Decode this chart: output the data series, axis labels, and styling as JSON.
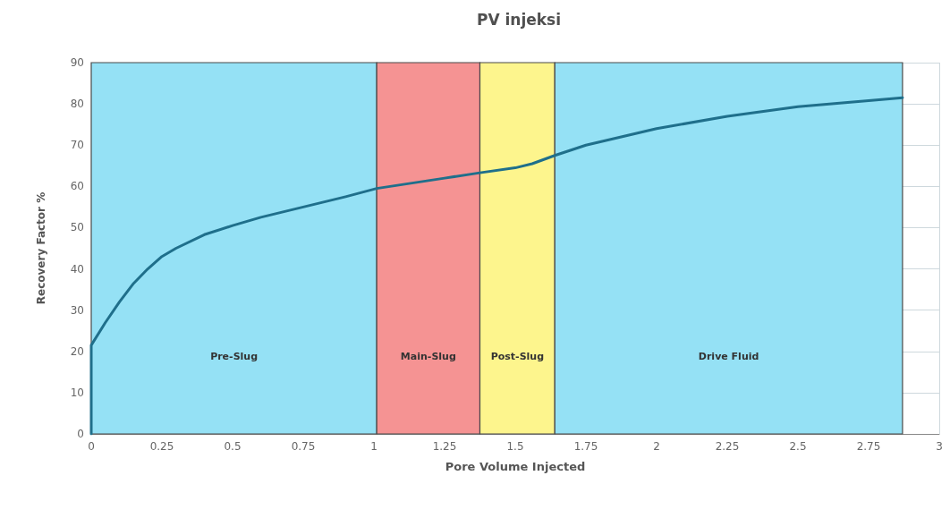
{
  "chart_data": {
    "type": "line",
    "title": "PV injeksi",
    "xlabel": "Pore Volume Injected",
    "ylabel": "Recovery Factor %",
    "x": [
      0,
      0,
      0.05,
      0.1,
      0.15,
      0.2,
      0.25,
      0.3,
      0.4,
      0.5,
      0.6,
      0.75,
      0.9,
      1.01,
      1.25,
      1.375,
      1.5,
      1.56,
      1.64,
      1.75,
      2,
      2.25,
      2.5,
      2.75,
      2.87
    ],
    "series": [
      {
        "color": "#1f6f8b",
        "values": [
          0,
          21.5,
          27,
          32,
          36.5,
          40,
          43,
          45,
          48.3,
          50.5,
          52.5,
          55,
          57.5,
          59.5,
          62,
          63.3,
          64.5,
          65.5,
          67.5,
          70,
          74,
          77,
          79.3,
          80.8,
          81.5
        ]
      }
    ],
    "xlim": [
      0,
      3
    ],
    "xticks": [
      0,
      0.25,
      0.5,
      0.75,
      1,
      1.25,
      1.5,
      1.75,
      2,
      2.25,
      2.5,
      2.75,
      3
    ],
    "ylim": [
      0,
      90
    ],
    "yticks": [
      0,
      10,
      20,
      30,
      40,
      50,
      60,
      70,
      80,
      90
    ],
    "bands": [
      {
        "axis": "x",
        "from": 0,
        "to": 1.01,
        "label": "Pre-Slug",
        "color": "#95e1f5"
      },
      {
        "axis": "x",
        "from": 1.01,
        "to": 1.375,
        "label": "Main-Slug",
        "color": "#f59393"
      },
      {
        "axis": "x",
        "from": 1.375,
        "to": 1.64,
        "label": "Post-Slug",
        "color": "#fdf58d"
      },
      {
        "axis": "x",
        "from": 1.64,
        "to": 2.87,
        "label": "Drive Fluid",
        "color": "#95e1f5"
      }
    ],
    "grid": true,
    "marker": "none",
    "line_style": "solid"
  }
}
